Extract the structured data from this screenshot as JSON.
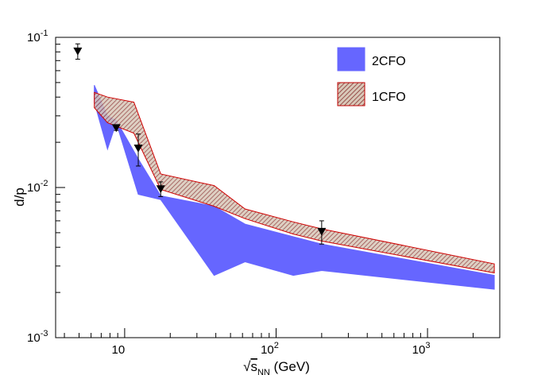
{
  "chart_data": {
    "type": "area",
    "xscale": "log",
    "yscale": "log",
    "xlim": [
      3.5,
      3000
    ],
    "ylim": [
      0.001,
      0.1
    ],
    "xlabel": {
      "prefix": "√",
      "var": "s",
      "sub": "NN",
      "suffix": " (GeV)"
    },
    "ylabel": "d/p",
    "x_ticks": [
      {
        "value": 10,
        "base": "10",
        "exp": ""
      },
      {
        "value": 100,
        "base": "10",
        "exp": "2"
      },
      {
        "value": 1000,
        "base": "10",
        "exp": "3"
      }
    ],
    "y_ticks": [
      {
        "value": 0.001,
        "base": "10",
        "exp": "-3"
      },
      {
        "value": 0.01,
        "base": "10",
        "exp": "-2"
      },
      {
        "value": 0.1,
        "base": "10",
        "exp": "-1"
      }
    ],
    "legend": [
      {
        "label": "2CFO",
        "color": "#6666ff",
        "style": "solid"
      },
      {
        "label": "1CFO",
        "color": "#c87878",
        "style": "hatched"
      }
    ],
    "series": [
      {
        "name": "2CFO",
        "kind": "band",
        "color": "#6666ff",
        "x": [
          6.3,
          7.7,
          8.8,
          12.3,
          17.3,
          39,
          62.4,
          130,
          200,
          2760
        ],
        "upper": [
          0.048,
          0.03,
          0.028,
          0.0155,
          0.0088,
          0.0075,
          0.0057,
          0.0047,
          0.0042,
          0.0026
        ],
        "lower": [
          0.037,
          0.018,
          0.027,
          0.009,
          0.0083,
          0.0026,
          0.0032,
          0.0026,
          0.0028,
          0.0021
        ]
      },
      {
        "name": "1CFO",
        "kind": "band",
        "color": "#c87878",
        "x": [
          6.3,
          7.7,
          11.5,
          17.3,
          39,
          62.4,
          130,
          200,
          2760
        ],
        "upper": [
          0.043,
          0.04,
          0.037,
          0.0123,
          0.0103,
          0.0072,
          0.0059,
          0.0053,
          0.0031
        ],
        "lower": [
          0.034,
          0.027,
          0.023,
          0.0097,
          0.0075,
          0.0062,
          0.0049,
          0.0044,
          0.0027
        ]
      },
      {
        "name": "data",
        "kind": "points",
        "marker": "triangle-down",
        "x": [
          4.9,
          8.8,
          12.3,
          17.3,
          200
        ],
        "y": [
          0.081,
          0.025,
          0.0183,
          0.0098,
          0.0051
        ],
        "err_low": [
          0.0095,
          0.001,
          0.0044,
          0.0011,
          0.0009
        ],
        "err_high": [
          0.0095,
          0.001,
          0.0044,
          0.0011,
          0.0009
        ]
      }
    ]
  }
}
